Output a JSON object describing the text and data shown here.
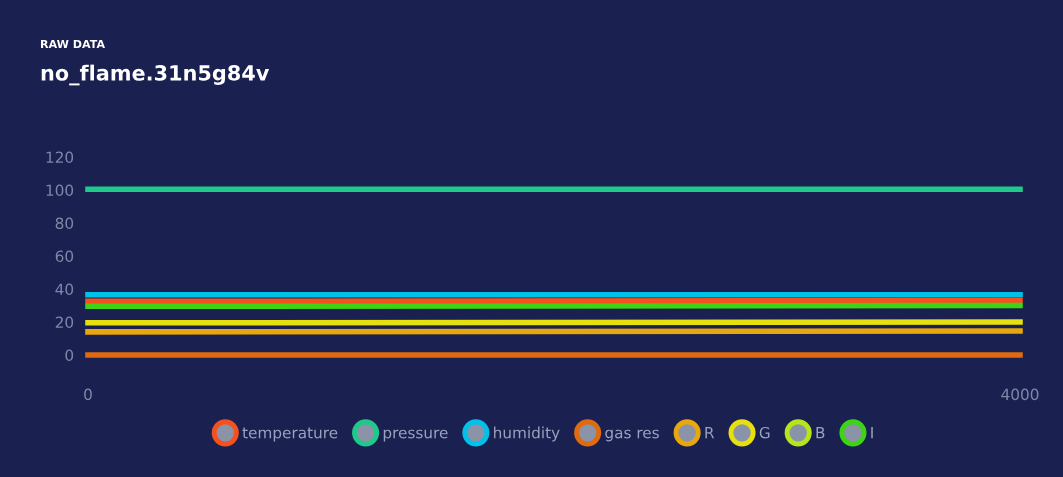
{
  "chart_data": {
    "type": "line",
    "title": "no_flame.31n5g84v",
    "subtitle": "RAW DATA",
    "x": [
      0,
      4000
    ],
    "xlim": [
      0,
      4000
    ],
    "xticks": [
      0,
      4000
    ],
    "ylim": [
      0,
      120
    ],
    "yticks": [
      0,
      20,
      40,
      60,
      80,
      100,
      120
    ],
    "grid": false,
    "legend": "bottom",
    "marker": "none",
    "line_style": "solid",
    "series": [
      {
        "name": "temperature",
        "color": "#f4511e",
        "values": [
          32.5,
          33
        ]
      },
      {
        "name": "pressure",
        "color": "#1ec98a",
        "values": [
          100.5,
          100.5
        ]
      },
      {
        "name": "humidity",
        "color": "#00c2e8",
        "values": [
          36.5,
          36.5
        ]
      },
      {
        "name": "gas res",
        "color": "#e06a10",
        "values": [
          0,
          0
        ]
      },
      {
        "name": "R",
        "color": "#e8a70c",
        "values": [
          14,
          14.5
        ]
      },
      {
        "name": "G",
        "color": "#e6e00f",
        "values": [
          19.5,
          20
        ]
      },
      {
        "name": "B",
        "color": "#b4e61a",
        "values": [
          null,
          null
        ]
      },
      {
        "name": "I",
        "color": "#3cd414",
        "values": [
          29.5,
          30
        ]
      }
    ]
  }
}
